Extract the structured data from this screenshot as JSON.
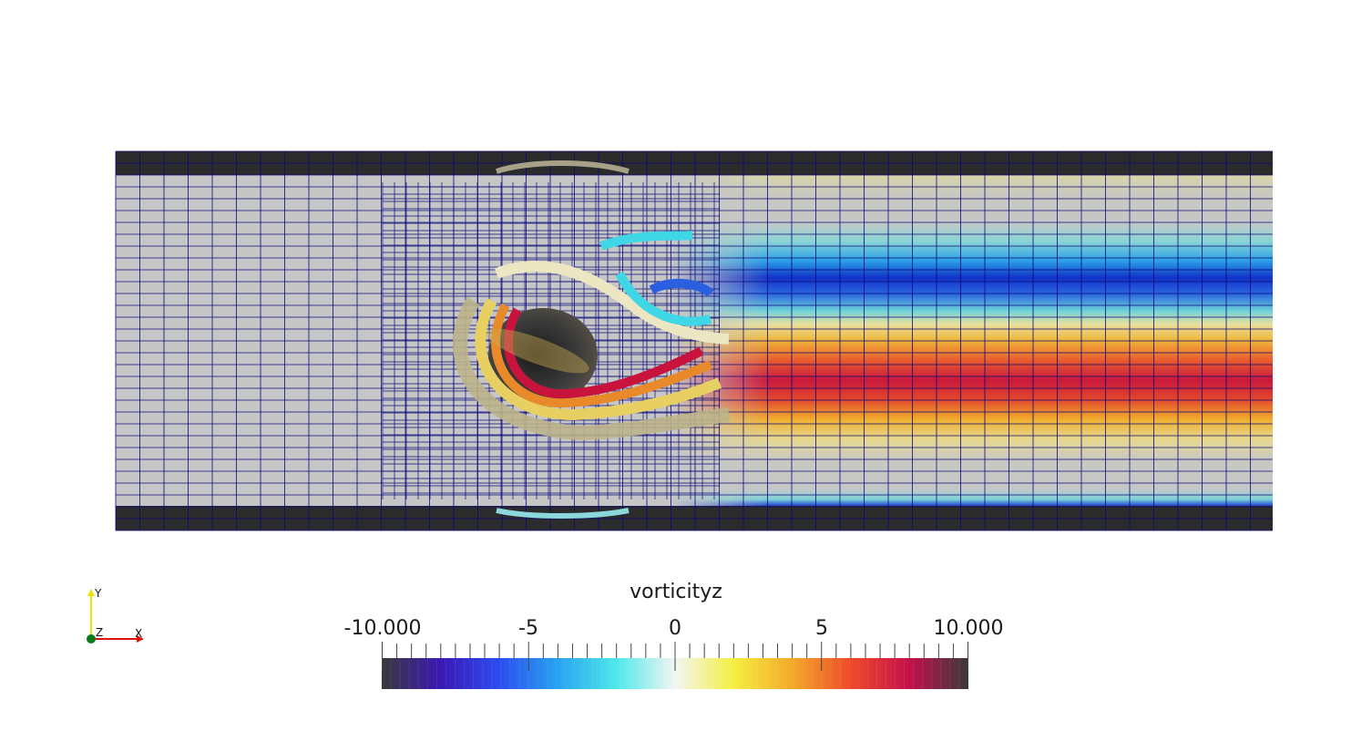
{
  "scene": {
    "name": "channel-flow-vorticity-render",
    "wall_color": "#2b2b2b",
    "mesh_line_color": "#0a0a7a",
    "background_color": "#ffffff"
  },
  "colorbar": {
    "title": "vorticityz",
    "range": [
      -10,
      10
    ],
    "tick_labels": [
      "-10.000",
      "-5",
      "0",
      "5",
      "10.000"
    ],
    "tick_values": [
      -10,
      -5,
      0,
      5,
      10
    ],
    "colormap": [
      "#3a3a3a",
      "#3a18b4",
      "#2c4cf0",
      "#27a3f0",
      "#4ee8ea",
      "#f2f6f2",
      "#f4ef40",
      "#f3a92a",
      "#ee4a2a",
      "#c4104a",
      "#3a3a3a"
    ]
  },
  "orientation_axes": {
    "x_label": "X",
    "y_label": "Y",
    "z_label": "Z",
    "x_color": "#e01010",
    "y_color": "#e6e600",
    "z_color": "#0a7a1a"
  }
}
